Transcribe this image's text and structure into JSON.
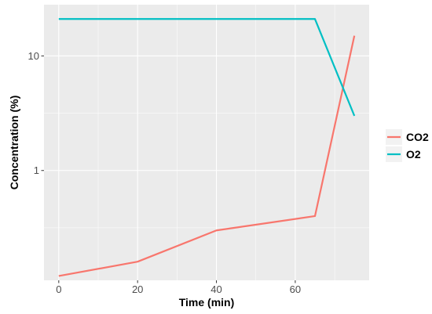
{
  "chart_data": {
    "type": "line",
    "xlabel": "Time (min)",
    "ylabel": "Concentration (%)",
    "x_ticks": [
      0,
      20,
      40,
      60
    ],
    "x_tick_labels": [
      "0",
      "20",
      "40",
      "60"
    ],
    "y_scale": "log",
    "y_ticks": [
      1,
      10
    ],
    "y_tick_labels": [
      "1",
      "10"
    ],
    "xlim": [
      -3.75,
      78.75
    ],
    "ylim": [
      0.11,
      28
    ],
    "grid": true,
    "legend_position": "right",
    "series": [
      {
        "name": "CO2",
        "color": "#F8766D",
        "points": [
          [
            0,
            0.12
          ],
          [
            20,
            0.16
          ],
          [
            40,
            0.3
          ],
          [
            65,
            0.4
          ],
          [
            75,
            15
          ]
        ]
      },
      {
        "name": "O2",
        "color": "#00BFC4",
        "points": [
          [
            0,
            21
          ],
          [
            65,
            21
          ],
          [
            75,
            3
          ]
        ]
      }
    ]
  }
}
